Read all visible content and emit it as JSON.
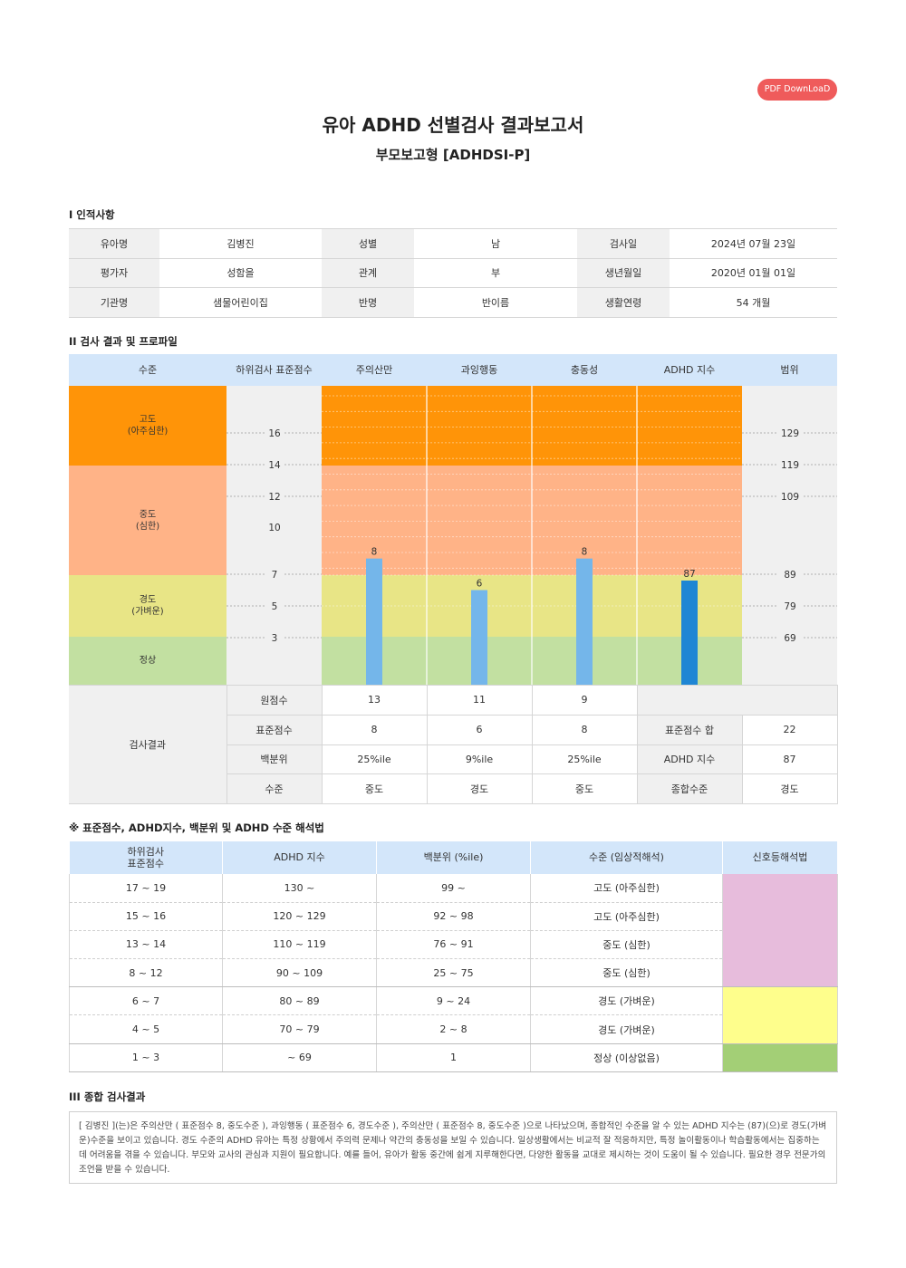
{
  "header": {
    "pdf_button": "PDF DownLoaD",
    "title": "유아 ADHD 선별검사 결과보고서",
    "subtitle": "부모보고형 [ADHDSI-P]"
  },
  "sections": {
    "personal": "I 인적사항",
    "profile": "II 검사 결과 및 프로파일",
    "interpretation": "※ 표준점수, ADHD지수, 백분위 및 ADHD 수준 해석법",
    "summary": "III 종합 검사결과"
  },
  "personal_info": [
    {
      "k1": "유아명",
      "v1": "김병진",
      "k2": "성별",
      "v2": "남",
      "k3": "검사일",
      "v3": "2024년 07월 23일"
    },
    {
      "k1": "평가자",
      "v1": "성함을",
      "k2": "관계",
      "v2": "부",
      "k3": "생년월일",
      "v3": "2020년 01월 01일"
    },
    {
      "k1": "기관명",
      "v1": "샘물어린이집",
      "k2": "반명",
      "v2": "반이름",
      "k3": "생활연령",
      "v3": "54 개월"
    }
  ],
  "profile": {
    "headers": [
      "수준",
      "하위검사 표준점수",
      "주의산만",
      "과잉행동",
      "충동성",
      "ADHD 지수",
      "범위"
    ],
    "zones": [
      {
        "label": "고도\n(아주심한)",
        "color": "#ff9408"
      },
      {
        "label": "중도\n(심한)",
        "color": "#ffb387"
      },
      {
        "label": "경도\n(가벼운)",
        "color": "#e8e586"
      },
      {
        "label": "정상",
        "color": "#c2e0a1"
      }
    ],
    "subtest_ticks": [
      "16",
      "14",
      "12",
      "10",
      "7",
      "5",
      "3"
    ],
    "range_ticks": [
      "129",
      "119",
      "109",
      "89",
      "79",
      "69"
    ],
    "results_label": "검사결과",
    "row_labels": [
      "원점수",
      "표준점수",
      "백분위",
      "수준"
    ],
    "raw": [
      "13",
      "11",
      "9"
    ],
    "standard": [
      "8",
      "6",
      "8"
    ],
    "percentile": [
      "25%ile",
      "9%ile",
      "25%ile"
    ],
    "level": [
      "중도",
      "경도",
      "중도"
    ],
    "extra_labels": [
      "표준점수 합",
      "ADHD 지수",
      "종합수준"
    ],
    "extra_values": [
      "22",
      "87",
      "경도"
    ]
  },
  "chart_data": {
    "type": "bar",
    "categories": [
      "주의산만",
      "과잉행동",
      "충동성",
      "ADHD 지수"
    ],
    "values": [
      8,
      6,
      8,
      87
    ],
    "bar_labels": [
      "8",
      "6",
      "8",
      "87"
    ],
    "scale": "standard score axis for subtests; ADHD index axis for ADHD 지수",
    "colors": [
      "#74b6ea",
      "#74b6ea",
      "#74b6ea",
      "#1f86d4"
    ]
  },
  "interpretation": {
    "headers": [
      "하위검사\n표준점수",
      "ADHD 지수",
      "백분위 (%ile)",
      "수준 (임상적해석)",
      "신호등해석법"
    ],
    "rows": [
      [
        "17 ~ 19",
        "130 ~",
        "99 ~",
        "고도 (아주심한)"
      ],
      [
        "15 ~ 16",
        "120 ~ 129",
        "92 ~ 98",
        "고도 (아주심한)"
      ],
      [
        "13 ~ 14",
        "110 ~ 119",
        "76 ~ 91",
        "중도 (심한)"
      ],
      [
        "8 ~ 12",
        "90 ~ 109",
        "25 ~ 75",
        "중도 (심한)"
      ],
      [
        "6 ~ 7",
        "80 ~ 89",
        "9 ~ 24",
        "경도 (가벼운)"
      ],
      [
        "4 ~ 5",
        "70 ~ 79",
        "2 ~ 8",
        "경도 (가벼운)"
      ],
      [
        "1 ~ 3",
        "~ 69",
        "1",
        "정상 (이상없음)"
      ]
    ],
    "signal_colors": [
      "#e7bcdc",
      "#fefe8c",
      "#a3cf76"
    ]
  },
  "summary_text": "[ 김병진 ](는)은 주의산만 ( 표준점수 8, 중도수준 ), 과잉행동 ( 표준점수 6, 경도수준 ), 주의산만 ( 표준점수 8, 중도수준 )으로 나타났으며, 종합적인 수준을 알 수 있는 ADHD 지수는 (87)(으)로 경도(가벼운)수준을 보이고 있습니다. 경도 수준의 ADHD 유아는 특정 상황에서 주의력 문제나 약간의 충동성을 보일 수 있습니다. 일상생활에서는 비교적 잘 적응하지만, 특정 놀이활동이나 학습활동에서는 집중하는 데 어려움을 겪을 수 있습니다. 부모와 교사의 관심과 지원이 필요합니다. 예를 들어, 유아가 활동 중간에 쉽게 지루해한다면, 다양한 활동을 교대로 제시하는 것이 도움이 될 수 있습니다. 필요한 경우 전문가의 조언을 받을 수 있습니다."
}
